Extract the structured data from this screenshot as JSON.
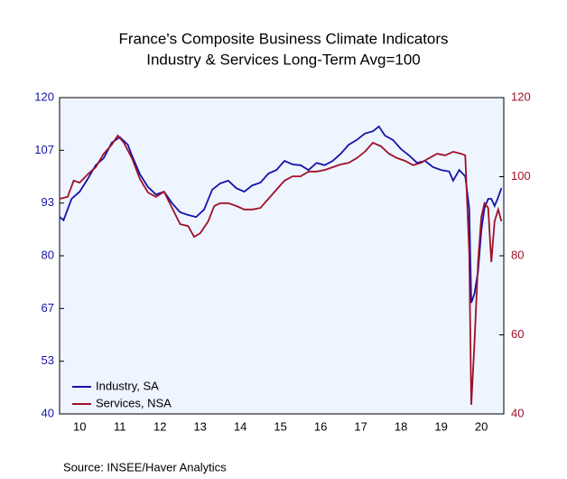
{
  "chart_data": {
    "type": "line",
    "title": "France's Composite Business Climate Indicators",
    "subtitle": "Industry & Services    Long-Term Avg=100",
    "source": "Source:   INSEE/Haver Analytics",
    "xlim": [
      2010,
      2021.06
    ],
    "xticks": [
      {
        "value": 2010.5,
        "label": "10"
      },
      {
        "value": 2011.5,
        "label": "11"
      },
      {
        "value": 2012.5,
        "label": "12"
      },
      {
        "value": 2013.5,
        "label": "13"
      },
      {
        "value": 2014.5,
        "label": "14"
      },
      {
        "value": 2015.5,
        "label": "15"
      },
      {
        "value": 2016.5,
        "label": "16"
      },
      {
        "value": 2017.5,
        "label": "17"
      },
      {
        "value": 2018.5,
        "label": "18"
      },
      {
        "value": 2019.5,
        "label": "19"
      },
      {
        "value": 2020.5,
        "label": "20"
      }
    ],
    "ylim": [
      40,
      120
    ],
    "yticks": [
      40,
      {
        "value": 53.33,
        "label": "53"
      },
      {
        "value": 66.67,
        "label": "67"
      },
      80,
      {
        "value": 93.33,
        "label": "93"
      },
      {
        "value": 106.67,
        "label": "107"
      },
      120
    ],
    "y2lim": [
      40,
      120
    ],
    "y2ticks": [
      40,
      60,
      80,
      100,
      120
    ],
    "legend": "lower left",
    "series": [
      {
        "name": "Industry, SA",
        "color": "#1414a8",
        "x": [
          2010.0,
          2010.1,
          2010.3,
          2010.5,
          2010.7,
          2010.9,
          2011.1,
          2011.3,
          2011.5,
          2011.7,
          2011.8,
          2012.0,
          2012.2,
          2012.4,
          2012.6,
          2012.8,
          2013.0,
          2013.2,
          2013.4,
          2013.6,
          2013.8,
          2014.0,
          2014.2,
          2014.4,
          2014.6,
          2014.8,
          2015.0,
          2015.2,
          2015.4,
          2015.6,
          2015.8,
          2016.0,
          2016.2,
          2016.4,
          2016.6,
          2016.8,
          2017.0,
          2017.2,
          2017.4,
          2017.6,
          2017.8,
          2017.95,
          2018.1,
          2018.3,
          2018.5,
          2018.7,
          2018.9,
          2019.1,
          2019.3,
          2019.5,
          2019.7,
          2019.8,
          2019.95,
          2020.1,
          2020.2,
          2020.25,
          2020.33,
          2020.42,
          2020.5,
          2020.58,
          2020.67,
          2020.75,
          2020.83,
          2020.92,
          2021.0
        ],
        "values": [
          89.8,
          89,
          94.4,
          96.2,
          99.4,
          102.9,
          104.7,
          108.6,
          110,
          108.1,
          105.4,
          100.6,
          97.4,
          95.5,
          96.2,
          93.3,
          91,
          90.3,
          89.8,
          91.7,
          96.7,
          98.3,
          99,
          97.1,
          96.2,
          97.8,
          98.5,
          100.8,
          101.7,
          104,
          103.1,
          102.9,
          101.7,
          103.5,
          102.9,
          104,
          105.8,
          108.1,
          109.3,
          110.9,
          111.5,
          112.7,
          110.4,
          109.3,
          107,
          105.4,
          103.5,
          104,
          102.4,
          101.7,
          101.3,
          99,
          101.7,
          100.1,
          92.1,
          68.1,
          70.4,
          76.1,
          86.4,
          92.1,
          94.4,
          94.4,
          92.6,
          94.8,
          97.1
        ]
      },
      {
        "name": "Services, NSA",
        "color": "#a0102a",
        "axis": "y2",
        "x": [
          2010.0,
          2010.2,
          2010.35,
          2010.5,
          2010.7,
          2010.9,
          2011.1,
          2011.3,
          2011.45,
          2011.6,
          2011.8,
          2012.0,
          2012.2,
          2012.4,
          2012.6,
          2012.8,
          2013.0,
          2013.2,
          2013.35,
          2013.5,
          2013.7,
          2013.85,
          2014.0,
          2014.2,
          2014.4,
          2014.6,
          2014.8,
          2015.0,
          2015.2,
          2015.4,
          2015.6,
          2015.8,
          2016.0,
          2016.2,
          2016.4,
          2016.6,
          2016.8,
          2017.0,
          2017.2,
          2017.4,
          2017.6,
          2017.8,
          2018.0,
          2018.2,
          2018.4,
          2018.6,
          2018.8,
          2019.0,
          2019.2,
          2019.4,
          2019.6,
          2019.8,
          2020.0,
          2020.1,
          2020.2,
          2020.25,
          2020.33,
          2020.42,
          2020.5,
          2020.58,
          2020.67,
          2020.75,
          2020.83,
          2020.92,
          2021.0
        ],
        "values": [
          94.4,
          94.9,
          99,
          98.5,
          100.6,
          102.4,
          105.8,
          108.1,
          110.4,
          108.6,
          104.7,
          99.4,
          96,
          94.9,
          96.2,
          92.1,
          88,
          87.5,
          84.8,
          85.7,
          88.7,
          92.6,
          93.3,
          93.3,
          92.6,
          91.7,
          91.7,
          92.1,
          94.4,
          96.7,
          99,
          100.1,
          100.1,
          101.3,
          101.3,
          101.7,
          102.4,
          103.1,
          103.5,
          104.7,
          106.3,
          108.6,
          107.7,
          105.8,
          104.7,
          104,
          102.9,
          103.5,
          104.7,
          105.8,
          105.4,
          106.3,
          105.8,
          105.4,
          80.7,
          42.3,
          57.8,
          78.4,
          89.8,
          93.3,
          92.1,
          78.4,
          88.7,
          91.7,
          88.7
        ]
      }
    ]
  }
}
